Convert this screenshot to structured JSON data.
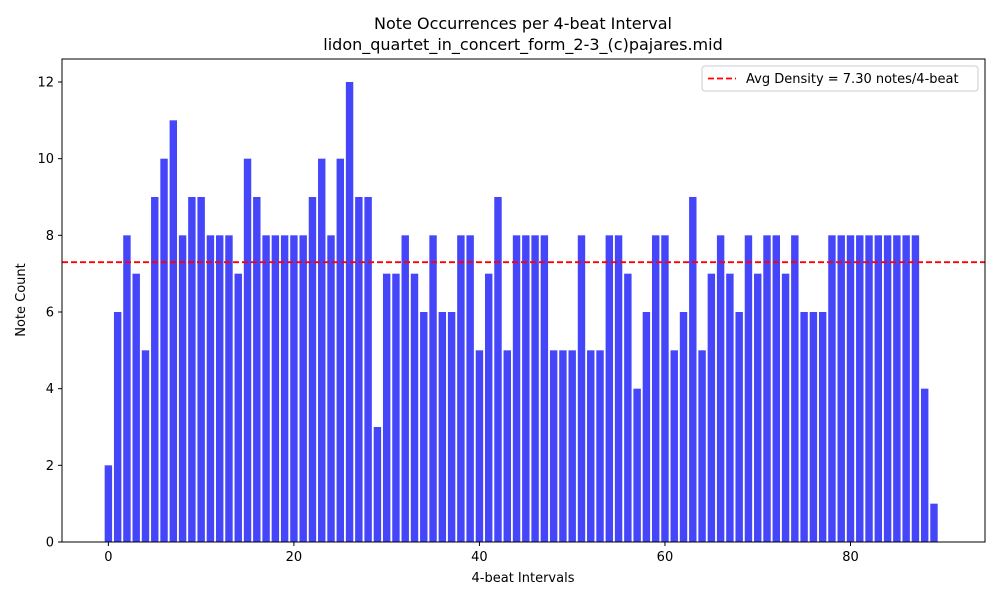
{
  "chart_data": {
    "type": "bar",
    "title": "Note Occurrences per 4-beat Interval",
    "subtitle": "lidon_quartet_in_concert_form_2-3_(c)pajares.mid",
    "xlabel": "4-beat Intervals",
    "ylabel": "Note Count",
    "xlim": [
      -5,
      94.5
    ],
    "ylim": [
      0,
      12.6
    ],
    "xticks": [
      0,
      20,
      40,
      60,
      80
    ],
    "yticks": [
      0,
      2,
      4,
      6,
      8,
      10,
      12
    ],
    "bar_color": "#4545fa",
    "x": [
      0,
      1,
      2,
      3,
      4,
      5,
      6,
      7,
      8,
      9,
      10,
      11,
      12,
      13,
      14,
      15,
      16,
      17,
      18,
      19,
      20,
      21,
      22,
      23,
      24,
      25,
      26,
      27,
      28,
      29,
      30,
      31,
      32,
      33,
      34,
      35,
      36,
      37,
      38,
      39,
      40,
      41,
      42,
      43,
      44,
      45,
      46,
      47,
      48,
      49,
      50,
      51,
      52,
      53,
      54,
      55,
      56,
      57,
      58,
      59,
      60,
      61,
      62,
      63,
      64,
      65,
      66,
      67,
      68,
      69,
      70,
      71,
      72,
      73,
      74,
      75,
      76,
      77,
      78,
      79,
      80,
      81,
      82,
      83,
      84,
      85,
      86,
      87,
      88,
      89
    ],
    "values": [
      2,
      6,
      8,
      7,
      5,
      9,
      10,
      11,
      8,
      9,
      9,
      8,
      8,
      8,
      7,
      10,
      9,
      8,
      8,
      8,
      8,
      8,
      9,
      10,
      8,
      10,
      12,
      9,
      9,
      3,
      7,
      7,
      8,
      7,
      6,
      8,
      6,
      6,
      8,
      8,
      5,
      7,
      9,
      5,
      8,
      8,
      8,
      8,
      5,
      5,
      5,
      8,
      5,
      5,
      8,
      8,
      7,
      4,
      6,
      8,
      8,
      5,
      6,
      9,
      5,
      7,
      8,
      7,
      6,
      8,
      7,
      8,
      8,
      7,
      8,
      6,
      6,
      6,
      8,
      8,
      8,
      8,
      8,
      8,
      8,
      8,
      8,
      8,
      4,
      1
    ],
    "reference_line": {
      "value": 7.3,
      "color": "#ff0000",
      "style": "dashed",
      "label": "Avg Density = 7.30 notes/4-beat"
    },
    "legend": {
      "placement": "top-right",
      "entries": [
        "Avg Density = 7.30 notes/4-beat"
      ]
    },
    "grid": false
  }
}
